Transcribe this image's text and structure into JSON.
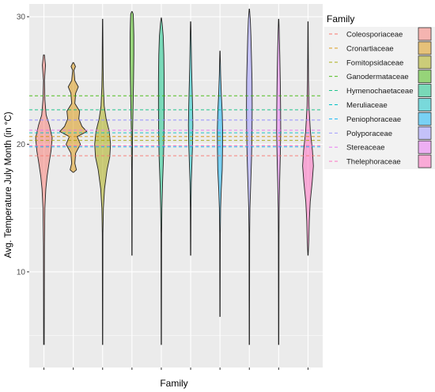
{
  "chart_data": {
    "type": "violin",
    "xlabel": "Family",
    "ylabel": "Avg. Temperature July Month (in °C)",
    "ylim": [
      2.5,
      31
    ],
    "yticks": [
      10,
      20,
      30
    ],
    "grid": true,
    "legend": {
      "title": "Family",
      "position": "right"
    },
    "series": [
      {
        "name": "Coleosporiaceae",
        "color": "#F8766D",
        "min": 4.3,
        "max": 27.0,
        "mean": 19.1,
        "density": [
          [
            4.3,
            0.02
          ],
          [
            12,
            0.03
          ],
          [
            15,
            0.06
          ],
          [
            16.5,
            0.12
          ],
          [
            17.5,
            0.2
          ],
          [
            18.5,
            0.32
          ],
          [
            19.5,
            0.45
          ],
          [
            20.5,
            0.52
          ],
          [
            21.5,
            0.34
          ],
          [
            22.3,
            0.14
          ],
          [
            23.5,
            0.06
          ],
          [
            25,
            0.03
          ],
          [
            26.2,
            0.1
          ],
          [
            27,
            0.03
          ]
        ]
      },
      {
        "name": "Cronartiaceae",
        "color": "#D89000",
        "min": 17.8,
        "max": 26.4,
        "mean": 20.6,
        "density": [
          [
            17.8,
            0.02
          ],
          [
            18.0,
            0.2
          ],
          [
            18.5,
            0.1
          ],
          [
            19.3,
            0.15
          ],
          [
            20.0,
            0.45
          ],
          [
            20.6,
            0.25
          ],
          [
            21.0,
            0.85
          ],
          [
            21.4,
            0.55
          ],
          [
            22.0,
            0.35
          ],
          [
            22.6,
            0.4
          ],
          [
            23.2,
            0.1
          ],
          [
            24.0,
            0.15
          ],
          [
            24.5,
            0.32
          ],
          [
            25.0,
            0.1
          ],
          [
            25.8,
            0.04
          ],
          [
            26.1,
            0.14
          ],
          [
            26.4,
            0.02
          ]
        ]
      },
      {
        "name": "Fomitopsidaceae",
        "color": "#A3A500",
        "min": 4.3,
        "max": 29.8,
        "mean": 20.3,
        "density": [
          [
            4.3,
            0.01
          ],
          [
            13,
            0.02
          ],
          [
            15,
            0.05
          ],
          [
            16.5,
            0.12
          ],
          [
            18,
            0.28
          ],
          [
            19,
            0.45
          ],
          [
            20,
            0.5
          ],
          [
            21,
            0.42
          ],
          [
            22,
            0.22
          ],
          [
            23,
            0.1
          ],
          [
            24.5,
            0.05
          ],
          [
            26,
            0.03
          ],
          [
            28,
            0.02
          ],
          [
            29.8,
            0.01
          ]
        ]
      },
      {
        "name": "Ganodermataceae",
        "color": "#39B600",
        "min": 11.3,
        "max": 30.4,
        "mean": 23.8,
        "density": [
          [
            11.3,
            0.01
          ],
          [
            18,
            0.02
          ],
          [
            21,
            0.04
          ],
          [
            23,
            0.07
          ],
          [
            25,
            0.1
          ],
          [
            27,
            0.12
          ],
          [
            28.5,
            0.12
          ],
          [
            29.5,
            0.1
          ],
          [
            30.2,
            0.08
          ],
          [
            30.4,
            0.02
          ]
        ]
      },
      {
        "name": "Hymenochaetaceae",
        "color": "#00BF7D",
        "min": 4.3,
        "max": 29.9,
        "mean": 22.7,
        "density": [
          [
            4.3,
            0.01
          ],
          [
            13,
            0.02
          ],
          [
            15,
            0.04
          ],
          [
            17,
            0.08
          ],
          [
            19,
            0.14
          ],
          [
            21,
            0.17
          ],
          [
            23,
            0.18
          ],
          [
            25,
            0.18
          ],
          [
            27,
            0.16
          ],
          [
            28.5,
            0.12
          ],
          [
            29.5,
            0.05
          ],
          [
            29.9,
            0.01
          ]
        ]
      },
      {
        "name": "Meruliaceae",
        "color": "#00BFC4",
        "min": 11.3,
        "max": 29.6,
        "mean": 20.9,
        "density": [
          [
            11.3,
            0.01
          ],
          [
            15,
            0.02
          ],
          [
            17,
            0.04
          ],
          [
            18.5,
            0.08
          ],
          [
            20,
            0.12
          ],
          [
            21.5,
            0.14
          ],
          [
            23,
            0.12
          ],
          [
            24.5,
            0.09
          ],
          [
            26,
            0.06
          ],
          [
            27.5,
            0.04
          ],
          [
            29,
            0.02
          ],
          [
            29.6,
            0.01
          ]
        ]
      },
      {
        "name": "Peniophoraceae",
        "color": "#00B0F6",
        "min": 6.5,
        "max": 27.3,
        "mean": 19.8,
        "density": [
          [
            6.5,
            0.01
          ],
          [
            13,
            0.02
          ],
          [
            15,
            0.04
          ],
          [
            16.5,
            0.08
          ],
          [
            18,
            0.14
          ],
          [
            19.5,
            0.16
          ],
          [
            21,
            0.17
          ],
          [
            22.5,
            0.14
          ],
          [
            24,
            0.08
          ],
          [
            25.5,
            0.04
          ],
          [
            27.3,
            0.01
          ]
        ]
      },
      {
        "name": "Polyporaceae",
        "color": "#9590FF",
        "min": 4.3,
        "max": 30.6,
        "mean": 21.9,
        "density": [
          [
            4.3,
            0.01
          ],
          [
            13,
            0.02
          ],
          [
            15,
            0.04
          ],
          [
            17,
            0.09
          ],
          [
            19,
            0.14
          ],
          [
            21,
            0.17
          ],
          [
            23,
            0.18
          ],
          [
            25,
            0.17
          ],
          [
            27,
            0.13
          ],
          [
            28.5,
            0.1
          ],
          [
            29.8,
            0.06
          ],
          [
            30.6,
            0.01
          ]
        ]
      },
      {
        "name": "Stereaceae",
        "color": "#E76BF3",
        "min": 4.3,
        "max": 29.8,
        "mean": 21.1,
        "density": [
          [
            4.3,
            0.01
          ],
          [
            13,
            0.02
          ],
          [
            15,
            0.03
          ],
          [
            17,
            0.06
          ],
          [
            19,
            0.1
          ],
          [
            21,
            0.13
          ],
          [
            23,
            0.12
          ],
          [
            25,
            0.1
          ],
          [
            27,
            0.07
          ],
          [
            29,
            0.03
          ],
          [
            29.8,
            0.01
          ]
        ]
      },
      {
        "name": "Thelephoraceae",
        "color": "#FF62BC",
        "min": 11.3,
        "max": 29.6,
        "mean": 19.9,
        "density": [
          [
            11.3,
            0.01
          ],
          [
            12.5,
            0.05
          ],
          [
            14,
            0.08
          ],
          [
            15.5,
            0.14
          ],
          [
            17,
            0.26
          ],
          [
            18.3,
            0.34
          ],
          [
            19.5,
            0.28
          ],
          [
            21,
            0.15
          ],
          [
            23,
            0.06
          ],
          [
            25,
            0.03
          ],
          [
            27,
            0.02
          ],
          [
            29.6,
            0.01
          ]
        ]
      }
    ]
  }
}
